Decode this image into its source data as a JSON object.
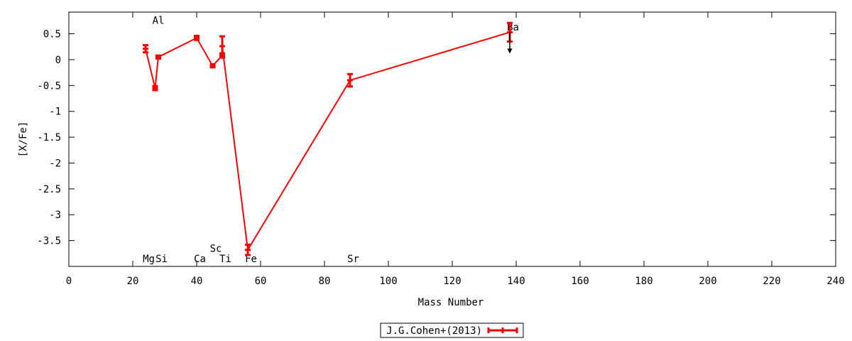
{
  "chart_data": {
    "type": "scatter",
    "title": "",
    "xlabel": "Mass Number",
    "ylabel": "[X/Fe]",
    "xlim": [
      0,
      240
    ],
    "ylim": [
      -4,
      0.92
    ],
    "xticks": [
      0,
      20,
      40,
      60,
      80,
      100,
      120,
      140,
      160,
      180,
      200,
      220,
      240
    ],
    "yticks": [
      0.5,
      0,
      -0.5,
      -1,
      -1.5,
      -2,
      -2.5,
      -3,
      -3.5
    ],
    "ytick_labels": [
      "0.5",
      "0",
      "-0.5",
      "-1",
      "-1.5",
      "-2",
      "-2.5",
      "-3",
      "-3.5"
    ],
    "grid": false,
    "legend_position": "bottom-center",
    "series": [
      {
        "name": "J.G.Cohen+(2013)",
        "color": "#ff0000",
        "x": [
          24,
          27,
          28,
          40,
          45,
          48,
          48,
          56,
          88,
          138
        ],
        "y": [
          0.21,
          -0.55,
          0.05,
          0.42,
          -0.12,
          0.08,
          0.26,
          -3.68,
          -0.4,
          0.53
        ],
        "yerr": [
          0.07,
          0.04,
          0.03,
          0.04,
          0.03,
          0.04,
          0.19,
          0.1,
          0.12,
          0.18
        ]
      }
    ],
    "upper_limits": [
      {
        "x": 138,
        "y": 0.53,
        "color": "#000000"
      }
    ],
    "element_labels": [
      {
        "text": "Mg",
        "x": 25,
        "y": -3.85
      },
      {
        "text": "Si",
        "x": 29,
        "y": -3.85
      },
      {
        "text": "Al",
        "x": 28,
        "y": 0.76
      },
      {
        "text": "Ca",
        "x": 41,
        "y": -3.85
      },
      {
        "text": "Sc",
        "x": 46,
        "y": -3.65
      },
      {
        "text": "Ti",
        "x": 49,
        "y": -3.85
      },
      {
        "text": "Fe",
        "x": 57,
        "y": -3.85
      },
      {
        "text": "Sr",
        "x": 89,
        "y": -3.85
      },
      {
        "text": "Ba",
        "x": 139,
        "y": 0.63
      }
    ]
  }
}
